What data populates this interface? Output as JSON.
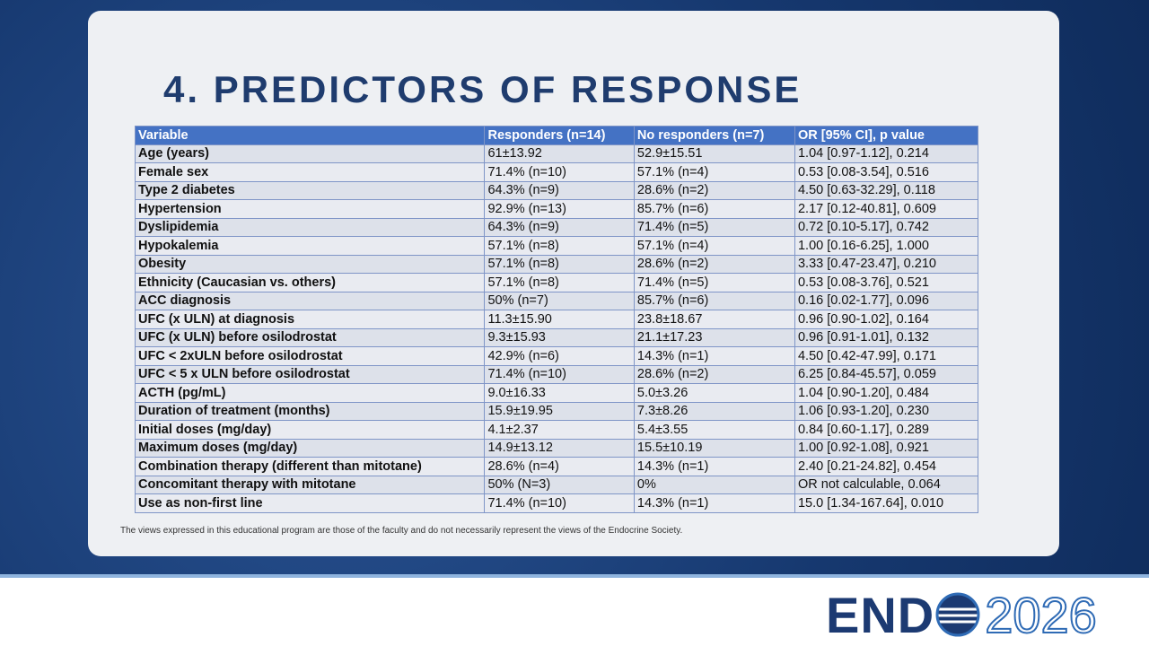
{
  "header": {
    "title": "4. PREDICTORS OF RESPONSE"
  },
  "table": {
    "columns": [
      "Variable",
      "Responders (n=14)",
      "No responders (n=7)",
      "OR [95% CI], p value"
    ],
    "rows": [
      [
        "Age (years)",
        "61±13.92",
        "52.9±15.51",
        "1.04 [0.97-1.12], 0.214"
      ],
      [
        "Female sex",
        "71.4% (n=10)",
        "57.1% (n=4)",
        "0.53 [0.08-3.54], 0.516"
      ],
      [
        "Type 2 diabetes",
        "64.3% (n=9)",
        "28.6% (n=2)",
        "4.50 [0.63-32.29], 0.118"
      ],
      [
        "Hypertension",
        "92.9% (n=13)",
        "85.7% (n=6)",
        "2.17 [0.12-40.81], 0.609"
      ],
      [
        "Dyslipidemia",
        "64.3% (n=9)",
        "71.4% (n=5)",
        "0.72 [0.10-5.17], 0.742"
      ],
      [
        "Hypokalemia",
        "57.1% (n=8)",
        "57.1% (n=4)",
        "1.00 [0.16-6.25], 1.000"
      ],
      [
        "Obesity",
        "57.1% (n=8)",
        "28.6% (n=2)",
        "3.33 [0.47-23.47], 0.210"
      ],
      [
        "Ethnicity (Caucasian vs. others)",
        "57.1% (n=8)",
        "71.4% (n=5)",
        "0.53 [0.08-3.76], 0.521"
      ],
      [
        "ACC diagnosis",
        "50% (n=7)",
        "85.7% (n=6)",
        "0.16 [0.02-1.77], 0.096"
      ],
      [
        "UFC (x ULN) at diagnosis",
        "11.3±15.90",
        "23.8±18.67",
        "0.96 [0.90-1.02], 0.164"
      ],
      [
        "UFC (x ULN) before osilodrostat",
        "9.3±15.93",
        "21.1±17.23",
        "0.96 [0.91-1.01], 0.132"
      ],
      [
        "UFC < 2xULN before osilodrostat",
        "42.9% (n=6)",
        "14.3% (n=1)",
        "4.50 [0.42-47.99], 0.171"
      ],
      [
        "UFC < 5 x ULN before osilodrostat",
        "71.4% (n=10)",
        "28.6% (n=2)",
        "6.25 [0.84-45.57], 0.059"
      ],
      [
        "ACTH (pg/mL)",
        "9.0±16.33",
        "5.0±3.26",
        "1.04 [0.90-1.20], 0.484"
      ],
      [
        "Duration of treatment (months)",
        "15.9±19.95",
        "7.3±8.26",
        "1.06 [0.93-1.20], 0.230"
      ],
      [
        "Initial doses (mg/day)",
        "4.1±2.37",
        "5.4±3.55",
        "0.84 [0.60-1.17], 0.289"
      ],
      [
        "Maximum doses (mg/day)",
        "14.9±13.12",
        "15.5±10.19",
        "1.00 [0.92-1.08], 0.921"
      ],
      [
        "Combination therapy (different than mitotane)",
        "28.6% (n=4)",
        "14.3% (n=1)",
        "2.40 [0.21-24.82], 0.454"
      ],
      [
        "Concomitant therapy with mitotane",
        "50% (N=3)",
        "0%",
        "OR not calculable, 0.064"
      ],
      [
        "Use as non-first line",
        "71.4% (n=10)",
        "14.3% (n=1)",
        "15.0 [1.34-167.64], 0.010"
      ]
    ]
  },
  "footer": "The views expressed in this educational program are those of the faculty and do not necessarily represent the views of the Endocrine Society.",
  "logo": {
    "brand": "END",
    "year": "2026"
  }
}
